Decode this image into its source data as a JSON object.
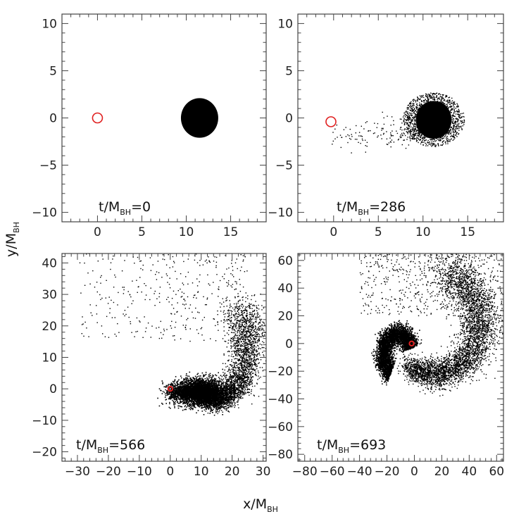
{
  "chart_data": [
    {
      "type": "scatter",
      "panel": "top-left",
      "xlim": [
        -4,
        19
      ],
      "ylim": [
        -11,
        11
      ],
      "xticks": [
        "0",
        "5",
        "10",
        "15"
      ],
      "yticks": [
        "10",
        "5",
        "0",
        "-5",
        "-10"
      ],
      "annotation": {
        "pre": "t/M",
        "sub": "BH",
        "post": "=0"
      },
      "bh": {
        "x": 0,
        "y": 0,
        "color": "#e02020"
      },
      "star": {
        "shape": "disk",
        "cx": 11.5,
        "cy": 0,
        "radius": 2.1
      }
    },
    {
      "type": "scatter",
      "panel": "top-right",
      "xlim": [
        -4,
        19
      ],
      "ylim": [
        -11,
        11
      ],
      "xticks": [
        "0",
        "5",
        "10",
        "15"
      ],
      "yticks": [
        "10",
        "5",
        "0",
        "-5",
        "-10"
      ],
      "annotation": {
        "pre": "t/M",
        "sub": "BH",
        "post": "=286"
      },
      "bh": {
        "x": -0.3,
        "y": -0.4,
        "color": "#e02020"
      },
      "star": {
        "shape": "disk",
        "cx": 11.2,
        "cy": -0.2,
        "radius": 2.0
      }
    },
    {
      "type": "scatter",
      "panel": "bottom-left",
      "xlim": [
        -35,
        31
      ],
      "ylim": [
        -23,
        43
      ],
      "xticks": [
        "-30",
        "-20",
        "-10",
        "0",
        "10",
        "20",
        "30"
      ],
      "yticks": [
        "40",
        "30",
        "20",
        "10",
        "0",
        "-10",
        "-20"
      ],
      "annotation": {
        "pre": "t/M",
        "sub": "BH",
        "post": "=566"
      },
      "bh": {
        "x": 0,
        "y": 0,
        "color": "#e02020"
      },
      "core": {
        "cx": 10,
        "cy": -1,
        "rx": 6,
        "ry": 3
      }
    },
    {
      "type": "scatter",
      "panel": "bottom-right",
      "xlim": [
        -85,
        65
      ],
      "ylim": [
        -85,
        65
      ],
      "xticks": [
        "-80",
        "-60",
        "-40",
        "-20",
        "0",
        "20",
        "40",
        "60"
      ],
      "yticks": [
        "60",
        "40",
        "20",
        "0",
        "-20",
        "-40",
        "-60",
        "-80"
      ],
      "annotation": {
        "pre": "t/M",
        "sub": "BH",
        "post": "=693"
      },
      "bh": {
        "x": -2,
        "y": 0,
        "color": "#e02020"
      }
    }
  ],
  "axes": {
    "xlabel": {
      "pre": "x/M",
      "sub": "BH"
    },
    "ylabel": {
      "pre": "y/M",
      "sub": "BH"
    }
  }
}
